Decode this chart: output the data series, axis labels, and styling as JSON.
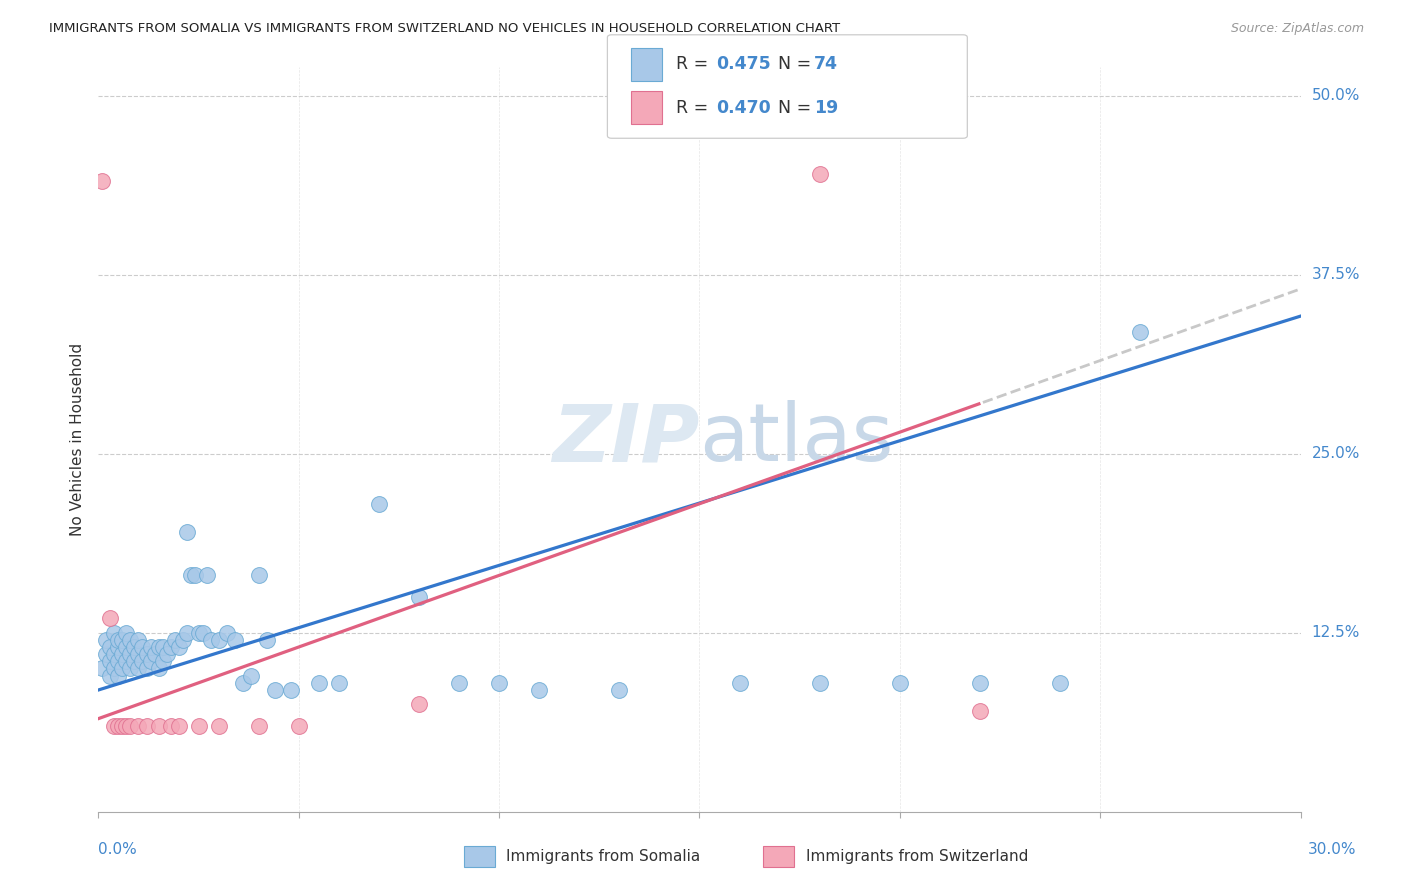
{
  "title": "IMMIGRANTS FROM SOMALIA VS IMMIGRANTS FROM SWITZERLAND NO VEHICLES IN HOUSEHOLD CORRELATION CHART",
  "source": "Source: ZipAtlas.com",
  "ylabel": "No Vehicles in Household",
  "xlim": [
    0.0,
    0.3
  ],
  "ylim": [
    0.0,
    0.52
  ],
  "yticks": [
    0.0,
    0.125,
    0.25,
    0.375,
    0.5
  ],
  "ytick_labels": [
    "",
    "12.5%",
    "25.0%",
    "37.5%",
    "50.0%"
  ],
  "somalia_color": "#a8c8e8",
  "somalia_edge": "#6aaad4",
  "switzerland_color": "#f4a8b8",
  "switzerland_edge": "#e07090",
  "somalia_line_color": "#3377cc",
  "switzerland_line_color": "#e06080",
  "dash_color": "#c8c8c8",
  "watermark_color": "#dde8f2",
  "grid_color": "#cccccc",
  "title_color": "#222222",
  "label_color": "#4488cc",
  "text_color": "#333333",
  "source_color": "#999999",
  "somalia_x": [
    0.001,
    0.002,
    0.002,
    0.003,
    0.003,
    0.003,
    0.004,
    0.004,
    0.004,
    0.005,
    0.005,
    0.005,
    0.005,
    0.006,
    0.006,
    0.006,
    0.007,
    0.007,
    0.007,
    0.008,
    0.008,
    0.008,
    0.009,
    0.009,
    0.01,
    0.01,
    0.01,
    0.011,
    0.011,
    0.012,
    0.012,
    0.013,
    0.013,
    0.014,
    0.015,
    0.015,
    0.016,
    0.016,
    0.017,
    0.018,
    0.019,
    0.02,
    0.021,
    0.022,
    0.022,
    0.023,
    0.024,
    0.025,
    0.026,
    0.027,
    0.028,
    0.03,
    0.032,
    0.034,
    0.036,
    0.038,
    0.04,
    0.042,
    0.044,
    0.048,
    0.055,
    0.06,
    0.07,
    0.08,
    0.09,
    0.1,
    0.11,
    0.13,
    0.16,
    0.18,
    0.2,
    0.22,
    0.24,
    0.26
  ],
  "somalia_y": [
    0.1,
    0.11,
    0.12,
    0.095,
    0.105,
    0.115,
    0.1,
    0.11,
    0.125,
    0.095,
    0.105,
    0.115,
    0.12,
    0.1,
    0.11,
    0.12,
    0.105,
    0.115,
    0.125,
    0.1,
    0.11,
    0.12,
    0.105,
    0.115,
    0.1,
    0.11,
    0.12,
    0.105,
    0.115,
    0.1,
    0.11,
    0.105,
    0.115,
    0.11,
    0.1,
    0.115,
    0.105,
    0.115,
    0.11,
    0.115,
    0.12,
    0.115,
    0.12,
    0.125,
    0.195,
    0.165,
    0.165,
    0.125,
    0.125,
    0.165,
    0.12,
    0.12,
    0.125,
    0.12,
    0.09,
    0.095,
    0.165,
    0.12,
    0.085,
    0.085,
    0.09,
    0.09,
    0.215,
    0.15,
    0.09,
    0.09,
    0.085,
    0.085,
    0.09,
    0.09,
    0.09,
    0.09,
    0.09,
    0.335
  ],
  "switzerland_x": [
    0.001,
    0.003,
    0.004,
    0.005,
    0.006,
    0.007,
    0.008,
    0.01,
    0.012,
    0.015,
    0.018,
    0.02,
    0.025,
    0.03,
    0.04,
    0.05,
    0.08,
    0.18,
    0.22
  ],
  "switzerland_y": [
    0.44,
    0.135,
    0.06,
    0.06,
    0.06,
    0.06,
    0.06,
    0.06,
    0.06,
    0.06,
    0.06,
    0.06,
    0.06,
    0.06,
    0.06,
    0.06,
    0.075,
    0.445,
    0.07
  ],
  "somalia_intercept": 0.085,
  "somalia_slope": 0.87,
  "switzerland_intercept": 0.065,
  "switzerland_slope": 1.0
}
